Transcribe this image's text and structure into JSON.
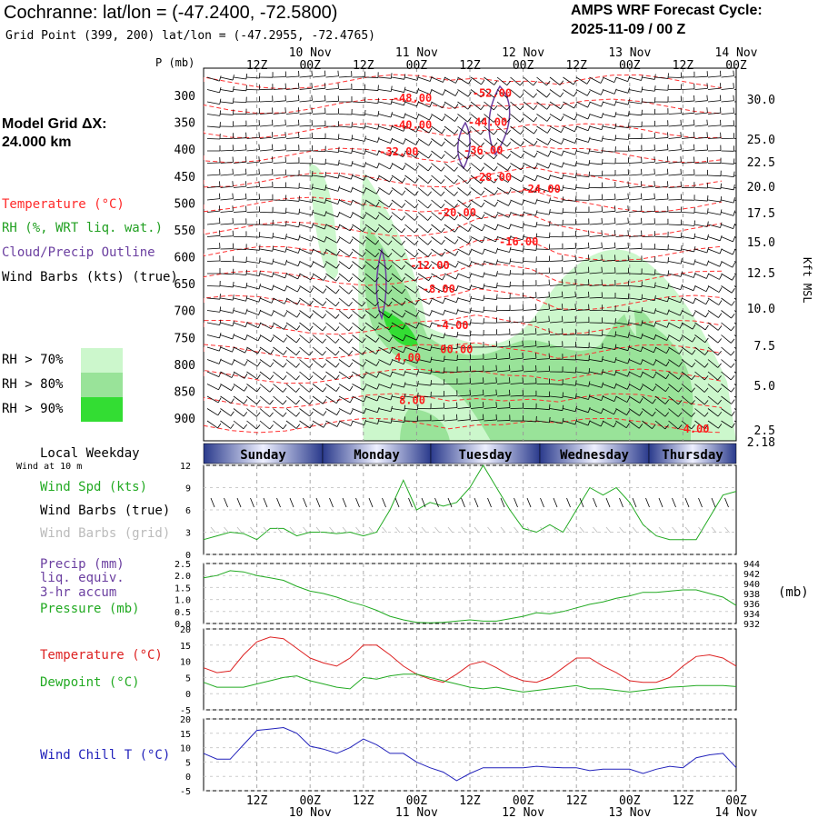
{
  "header": {
    "title": "Cochranne:  lat/lon = (-47.2400, -72.5800)",
    "grid_point": "Grid Point (399, 200) lat/lon = (-47.2955, -72.4765)",
    "cycle_line1": "AMPS WRF Forecast Cycle:",
    "cycle_line2": "2025-11-09 / 00  Z"
  },
  "model_grid": {
    "line1": "Model Grid ΔX:",
    "line2": " 24.000 km"
  },
  "legend_upper": [
    {
      "text": "Temperature (°C)",
      "color": "#ff2a2a"
    },
    {
      "text": "RH (%, WRT liq. wat.)",
      "color": "#22a022"
    },
    {
      "text": "Cloud/Precip Outline",
      "color": "#6b3fa0"
    },
    {
      "text": "Wind Barbs (kts) (true)",
      "color": "#000000"
    }
  ],
  "rh_legend": [
    {
      "label": "RH > 70%",
      "color": "#ccf7cc"
    },
    {
      "label": "RH > 80%",
      "color": "#99e399"
    },
    {
      "label": "RH > 90%",
      "color": "#33dd33"
    }
  ],
  "time_axis": {
    "top_time_labels": [
      "12Z",
      "00Z",
      "12Z",
      "00Z",
      "12Z",
      "00Z",
      "12Z",
      "00Z",
      "12Z",
      "00Z"
    ],
    "top_date_labels": [
      "10 Nov",
      "11 Nov",
      "12 Nov",
      "13 Nov",
      "14 Nov"
    ],
    "p_label": "P (mb)",
    "kft_label": "Kft MSL"
  },
  "weekday_bar": {
    "label": "Local Weekday",
    "sublabel": "Wind at 10 m",
    "days": [
      "Sunday",
      "Monday",
      "Tuesday",
      "Wednesday",
      "Thursday"
    ]
  },
  "panel_labels": {
    "wind": [
      {
        "text": "Wind Spd (kts)",
        "color": "#22aa22"
      },
      {
        "text": "Wind Barbs (true)",
        "color": "#000000"
      },
      {
        "text": "Wind Barbs (grid)",
        "color": "#bbbbbb"
      }
    ],
    "precip": [
      {
        "text": "Precip (mm)",
        "color": "#6b3fa0"
      },
      {
        "text": "liq. equiv.",
        "color": "#6b3fa0"
      },
      {
        "text": "3-hr accum",
        "color": "#6b3fa0"
      },
      {
        "text": "Pressure (mb)",
        "color": "#22aa22"
      }
    ],
    "pressure_unit": "(mb)",
    "temp": [
      {
        "text": "Temperature (°C)",
        "color": "#dd2222"
      },
      {
        "text": "Dewpoint (°C)",
        "color": "#22aa22"
      }
    ],
    "chill": [
      {
        "text": "Wind Chill T (°C)",
        "color": "#2222bb"
      }
    ]
  },
  "chart_data": [
    {
      "type": "heatmap",
      "name": "cross-section",
      "x_ticks": [
        "12Z",
        "00Z",
        "12Z",
        "00Z",
        "12Z",
        "00Z",
        "12Z",
        "00Z",
        "12Z",
        "00Z"
      ],
      "y_pressure_ticks": [
        300,
        350,
        400,
        450,
        500,
        550,
        600,
        650,
        700,
        750,
        800,
        850,
        900
      ],
      "y_kft_ticks": [
        "30.0",
        "25.0",
        "22.5",
        "20.0",
        "17.5",
        "15.0",
        "12.5",
        "10.0",
        "7.5",
        "5.0",
        "2.5",
        "2.18"
      ],
      "temperature_contour_labels": [
        {
          "text": "-48.00",
          "time_h": 47,
          "p": 305
        },
        {
          "text": "-52.00",
          "time_h": 65,
          "p": 296
        },
        {
          "text": "-40.00",
          "time_h": 47,
          "p": 355
        },
        {
          "text": "-44.00",
          "time_h": 64,
          "p": 350
        },
        {
          "text": "-32.00",
          "time_h": 44,
          "p": 405
        },
        {
          "text": "-36.00",
          "time_h": 63,
          "p": 402
        },
        {
          "text": "-28.00",
          "time_h": 65,
          "p": 452
        },
        {
          "text": "-24.00",
          "time_h": 76,
          "p": 474
        },
        {
          "text": "-20.00",
          "time_h": 57,
          "p": 518
        },
        {
          "text": "-16.00",
          "time_h": 71,
          "p": 572
        },
        {
          "text": "-12.00",
          "time_h": 51,
          "p": 616
        },
        {
          "text": "-8.00",
          "time_h": 53,
          "p": 660
        },
        {
          "text": "-4.00",
          "time_h": 56,
          "p": 728
        },
        {
          "text": "00.00",
          "time_h": 57,
          "p": 772
        },
        {
          "text": "4.00",
          "time_h": 46,
          "p": 788
        },
        {
          "text": "8.00",
          "time_h": 47,
          "p": 867
        },
        {
          "text": "4.00",
          "time_h": 111,
          "p": 920
        }
      ],
      "legend": [
        "Temperature (°C)",
        "RH (%, WRT liq. wat.)",
        "Cloud/Precip Outline",
        "Wind Barbs (kts) (true)"
      ]
    },
    {
      "type": "line",
      "name": "wind-speed",
      "x_hours": [
        0,
        3,
        6,
        9,
        12,
        15,
        18,
        21,
        24,
        27,
        30,
        33,
        36,
        39,
        42,
        45,
        48,
        51,
        54,
        57,
        60,
        63,
        66,
        69,
        72,
        75,
        78,
        81,
        84,
        87,
        90,
        93,
        96,
        99,
        102,
        105,
        108,
        111,
        114,
        117,
        120
      ],
      "ylim": [
        0,
        12
      ],
      "yticks": [
        0,
        3,
        6,
        9,
        12
      ],
      "series": [
        {
          "name": "Wind Spd (kts)",
          "color": "#22aa22",
          "values": [
            2,
            2.5,
            3,
            2.8,
            2,
            3.5,
            3.5,
            2.5,
            3,
            3,
            2.8,
            3,
            2.5,
            3,
            6,
            10,
            6,
            7,
            6.5,
            7,
            9,
            12,
            9,
            6,
            3.5,
            3,
            4,
            3,
            6,
            9,
            8,
            9,
            7,
            4,
            2.5,
            2,
            2,
            2,
            5,
            8,
            8.5
          ]
        }
      ]
    },
    {
      "type": "line",
      "name": "precip-pressure",
      "x_hours": [
        0,
        3,
        6,
        9,
        12,
        15,
        18,
        21,
        24,
        27,
        30,
        33,
        36,
        39,
        42,
        45,
        48,
        51,
        54,
        57,
        60,
        63,
        66,
        69,
        72,
        75,
        78,
        81,
        84,
        87,
        90,
        93,
        96,
        99,
        102,
        105,
        108,
        111,
        114,
        117,
        120
      ],
      "ylim": [
        0,
        2.5
      ],
      "yticks": [
        "0.0",
        "0.5",
        "1.0",
        "1.5",
        "2.0",
        "2.5"
      ],
      "y2ticks": [
        "932",
        "934",
        "936",
        "938",
        "940",
        "942",
        "944"
      ],
      "series": [
        {
          "name": "Pressure (mb)",
          "color": "#22aa22",
          "values": [
            1.9,
            2.0,
            2.2,
            2.15,
            2.0,
            1.9,
            1.8,
            1.55,
            1.35,
            1.25,
            1.1,
            0.9,
            0.75,
            0.55,
            0.3,
            0.15,
            0.05,
            0.03,
            0.05,
            0.1,
            0.15,
            0.1,
            0.1,
            0.2,
            0.3,
            0.45,
            0.4,
            0.5,
            0.65,
            0.8,
            0.9,
            1.05,
            1.15,
            1.3,
            1.3,
            1.35,
            1.4,
            1.4,
            1.25,
            1.1,
            0.75
          ]
        }
      ]
    },
    {
      "type": "line",
      "name": "temperature-dewpoint",
      "x_hours": [
        0,
        3,
        6,
        9,
        12,
        15,
        18,
        21,
        24,
        27,
        30,
        33,
        36,
        39,
        42,
        45,
        48,
        51,
        54,
        57,
        60,
        63,
        66,
        69,
        72,
        75,
        78,
        81,
        84,
        87,
        90,
        93,
        96,
        99,
        102,
        105,
        108,
        111,
        114,
        117,
        120
      ],
      "ylim": [
        -5,
        20
      ],
      "yticks": [
        -5,
        0,
        5,
        10,
        15,
        20
      ],
      "series": [
        {
          "name": "Temperature (°C)",
          "color": "#dd2222",
          "values": [
            8,
            6.5,
            7,
            12,
            16,
            17.5,
            17,
            14,
            11,
            9.5,
            8.5,
            11,
            15,
            15,
            12,
            8.5,
            6,
            4.5,
            3.5,
            6,
            9,
            10,
            8,
            5.5,
            4,
            3.5,
            5,
            8,
            11,
            11,
            8.5,
            6.5,
            4,
            3.5,
            3.5,
            5,
            8.5,
            11.5,
            12,
            11,
            8.5
          ]
        },
        {
          "name": "Dewpoint (°C)",
          "color": "#22aa22",
          "values": [
            3.5,
            2,
            2,
            2,
            3,
            4,
            5,
            5.5,
            4,
            3,
            2,
            1.5,
            5,
            4.5,
            5.5,
            6,
            6,
            5,
            4,
            3,
            2,
            1.5,
            2,
            1.2,
            0.5,
            1,
            1.5,
            2,
            2.5,
            1.5,
            1.5,
            1,
            0.5,
            1,
            1.5,
            2,
            2.2,
            2.5,
            2.5,
            2.5,
            2.2
          ]
        }
      ]
    },
    {
      "type": "line",
      "name": "wind-chill",
      "x_hours": [
        0,
        3,
        6,
        9,
        12,
        15,
        18,
        21,
        24,
        27,
        30,
        33,
        36,
        39,
        42,
        45,
        48,
        51,
        54,
        57,
        60,
        63,
        66,
        69,
        72,
        75,
        78,
        81,
        84,
        87,
        90,
        93,
        96,
        99,
        102,
        105,
        108,
        111,
        114,
        117,
        120
      ],
      "ylim": [
        -5,
        20
      ],
      "yticks": [
        -5,
        0,
        5,
        10,
        15,
        20
      ],
      "series": [
        {
          "name": "Wind Chill T (°C)",
          "color": "#2222bb",
          "values": [
            8,
            6,
            6,
            11,
            16,
            16.5,
            17,
            15,
            10.5,
            9.5,
            8,
            10,
            13,
            11,
            8,
            8,
            5,
            3,
            1.5,
            -1.5,
            1,
            3,
            3,
            3,
            3,
            3.5,
            3.2,
            3,
            3,
            2,
            2.5,
            2.5,
            2.5,
            1,
            2.5,
            3.5,
            3,
            6.5,
            7.5,
            8,
            3
          ]
        }
      ]
    }
  ]
}
